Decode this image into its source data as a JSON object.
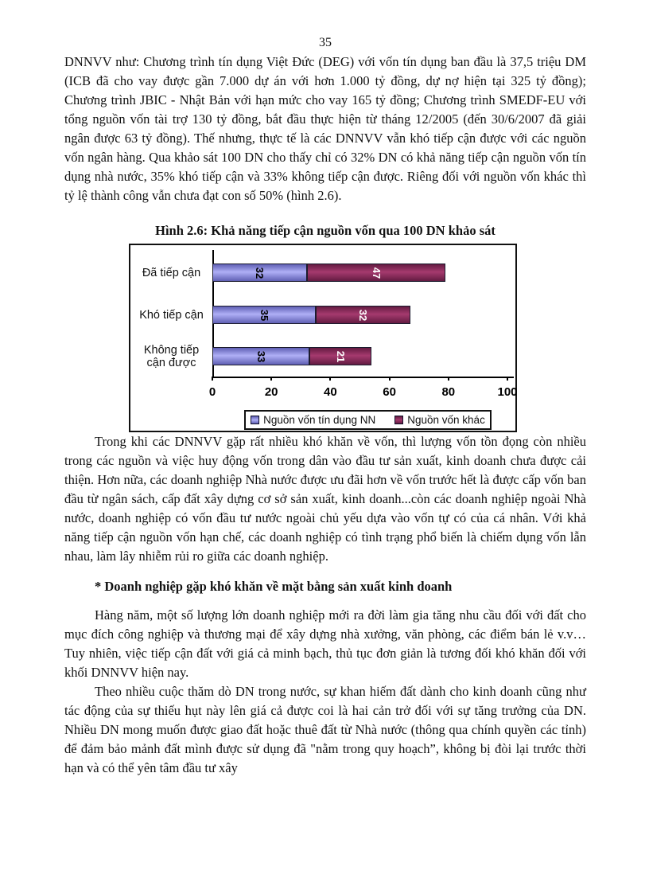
{
  "page_number": "35",
  "body": {
    "p1": "DNNVV như: Chương trình tín dụng Việt Đức (DEG) với vốn tín dụng ban đầu là 37,5 triệu DM (ICB đã cho vay được gần 7.000 dự án với hơn 1.000 tỷ đồng, dự nợ hiện tại 325 tỷ đồng); Chương trình JBIC - Nhật Bản với hạn mức cho vay 165 tỷ đồng; Chương trình SMEDF-EU với tổng nguồn vốn tài trợ 130 tỷ đồng, bắt đầu thực hiện từ tháng 12/2005 (đến 30/6/2007 đã giải ngân được 63 tỷ đồng). Thế nhưng, thực tế là các DNNVV vẫn khó tiếp cận được với các nguồn vốn ngân hàng. Qua khảo sát 100 DN cho thấy chỉ có 32% DN có khả năng tiếp cận nguồn vốn tín dụng nhà nước, 35% khó tiếp cận và 33% không tiếp cận được. Riêng đối với nguồn vốn khác thì tỷ lệ thành công vẫn chưa đạt con số 50% (hình 2.6).",
    "figure_caption": "Hình 2.6: Khả năng tiếp cận nguồn vốn qua 100 DN khảo sát",
    "p2": "Trong khi các DNNVV gặp rất nhiều khó khăn về vốn, thì lượng vốn tồn đọng còn nhiều trong các nguồn và việc huy động vốn trong dân vào đầu tư sản xuất, kinh doanh chưa được cải thiện. Hơn nữa, các doanh nghiệp Nhà nước được ưu đãi hơn về vốn trước hết là được cấp vốn ban đầu từ ngân sách, cấp đất xây dựng cơ sở sản xuất, kinh doanh...còn các doanh nghiệp ngoài Nhà nước, doanh nghiệp có vốn đầu tư nước ngoài chủ yếu dựa vào vốn tự có của cá nhân. Với khả năng tiếp cận nguồn vốn hạn chế, các doanh nghiệp có tình trạng phổ biến là chiếm dụng vốn lẫn nhau, làm lây nhiễm rủi ro giữa các doanh nghiệp.",
    "subheading": "* Doanh nghiệp gặp khó khăn về mặt bằng sản xuất kinh doanh",
    "p3": "Hàng năm, một số lượng lớn doanh nghiệp mới ra đời làm gia tăng nhu cầu đối với đất cho mục đích công nghiệp và thương mại để xây dựng nhà xưởng, văn phòng, các điểm bán lẻ v.v… Tuy nhiên, việc tiếp cận đất với giá cả minh bạch, thủ tục đơn giản là tương đối khó khăn đối với khối DNNVV hiện nay.",
    "p4": "Theo nhiều cuộc thăm dò DN trong nước, sự khan hiếm đất dành cho kinh doanh cũng như tác động của sự thiếu hụt này lên giá cả được coi là hai cản trở đối với sự tăng trưởng của DN. Nhiều DN mong muốn được giao đất hoặc thuê đất từ Nhà nước (thông qua chính quyền các tỉnh) để đảm bảo mảnh đất mình được sử dụng đã \"nằm trong quy hoạch”, không bị đòi lại trước thời hạn và có thể yên tâm đầu tư xây"
  },
  "chart_data": {
    "type": "bar",
    "orientation": "horizontal",
    "stacked": true,
    "title": "Hình 2.6: Khả năng tiếp cận nguồn vốn qua 100 DN khảo sát",
    "categories": [
      "Đã tiếp cận",
      "Khó tiếp cận",
      "Không tiếp cận được"
    ],
    "series": [
      {
        "name": "Nguồn vốn tín dụng NN",
        "values": [
          32,
          35,
          33
        ],
        "color": "#9999FF",
        "color_light": "#AFAFF6",
        "color_dark": "#5F5FB4",
        "label_color": "#000000"
      },
      {
        "name": "Nguồn vốn khác",
        "values": [
          47,
          32,
          21
        ],
        "color": "#993366",
        "color_light": "#A53A6E",
        "color_dark": "#641B41",
        "label_color": "#FFFFFF"
      }
    ],
    "x_ticks": [
      0,
      20,
      40,
      60,
      80,
      100
    ],
    "xlim": [
      0,
      100
    ],
    "grid": false,
    "legend_position": "bottom-inside",
    "value_label_rotation_deg": 90
  }
}
